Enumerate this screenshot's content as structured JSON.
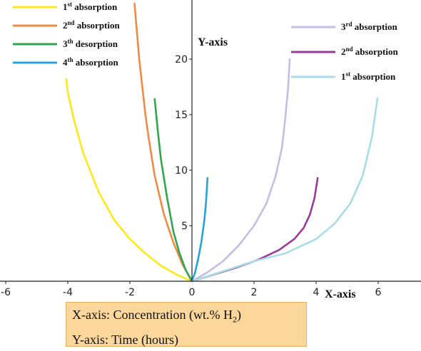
{
  "chart_data": {
    "type": "line",
    "x_axis": {
      "label": "X-axis",
      "range": [
        -6.5,
        7.5
      ],
      "ticks": [
        "-6",
        "-4",
        "-2",
        "0",
        "2",
        "4",
        "6"
      ]
    },
    "y_axis": {
      "label": "Y-axis",
      "range": [
        0,
        25
      ],
      "ticks": [
        "5",
        "10",
        "15",
        "20"
      ]
    },
    "grid": false,
    "legend_left": [
      {
        "ordinal": "1",
        "sup": "st",
        "text": "absorption",
        "color": "#ffe81a"
      },
      {
        "ordinal": "2",
        "sup": "nd",
        "text": "absorption",
        "color": "#f08a44"
      },
      {
        "ordinal": "3",
        "sup": "th",
        "text": "desorption",
        "color": "#2fa64d"
      },
      {
        "ordinal": "4",
        "sup": "th",
        "text": "absorption",
        "color": "#25a3da"
      }
    ],
    "legend_right": [
      {
        "ordinal": "3",
        "sup": "rd",
        "text": "absorption",
        "color": "#c4bde4"
      },
      {
        "ordinal": "2",
        "sup": "nd",
        "text": "absorption",
        "color": "#9a3a9a"
      },
      {
        "ordinal": "1",
        "sup": "st",
        "text": "absorption",
        "color": "#a8dde8"
      }
    ],
    "series": [
      {
        "color": "#ffe81a",
        "x": [
          0,
          -0.5,
          -1,
          -1.5,
          -2,
          -2.5,
          -3,
          -3.5,
          -3.8,
          -4.0,
          -4.05
        ],
        "y": [
          0,
          0.6,
          1.4,
          2.5,
          3.8,
          5.5,
          8.0,
          11.5,
          14.5,
          17.0,
          18.2
        ]
      },
      {
        "color": "#f08a44",
        "x": [
          0,
          -0.3,
          -0.6,
          -0.9,
          -1.2,
          -1.4,
          -1.5,
          -1.6,
          -1.7,
          -1.85
        ],
        "y": [
          0,
          1.5,
          3.5,
          6.0,
          9.5,
          13.0,
          15.0,
          17.5,
          20.0,
          25.0
        ]
      },
      {
        "color": "#2fa64d",
        "x": [
          0,
          -0.2,
          -0.4,
          -0.6,
          -0.8,
          -1.0,
          -1.1,
          -1.2
        ],
        "y": [
          0,
          1.0,
          2.5,
          4.5,
          7.5,
          11.0,
          13.5,
          16.4
        ]
      },
      {
        "color": "#25a3da",
        "x": [
          0,
          0.1,
          0.2,
          0.3,
          0.4,
          0.45,
          0.5
        ],
        "y": [
          0,
          0.8,
          2.0,
          3.5,
          5.5,
          7.0,
          9.3
        ]
      },
      {
        "color": "#c4bde4",
        "x": [
          0,
          0.5,
          1.0,
          1.5,
          2.0,
          2.4,
          2.7,
          2.9,
          3.0,
          3.1,
          3.15
        ],
        "y": [
          0,
          0.8,
          1.8,
          3.2,
          5.0,
          7.0,
          9.5,
          12.0,
          14.5,
          17.5,
          20.0
        ]
      },
      {
        "color": "#9a3a9a",
        "x": [
          0,
          0.7,
          1.4,
          2.1,
          2.8,
          3.3,
          3.6,
          3.8,
          3.95,
          4.05
        ],
        "y": [
          0,
          0.6,
          1.2,
          1.9,
          2.8,
          3.8,
          4.8,
          6.0,
          7.5,
          9.3
        ]
      },
      {
        "color": "#a8dde8",
        "x": [
          0,
          1.0,
          2.0,
          3.0,
          4.0,
          4.6,
          5.1,
          5.5,
          5.8,
          5.98
        ],
        "y": [
          0,
          0.9,
          1.8,
          2.5,
          3.8,
          5.2,
          7.0,
          9.5,
          13.0,
          16.5
        ]
      }
    ]
  },
  "note": {
    "line1_prefix": "X-axis: Concentration (wt.% H",
    "line1_sub": "2",
    "line1_suffix": ")",
    "line2": "Y-axis: Time (hours)"
  }
}
